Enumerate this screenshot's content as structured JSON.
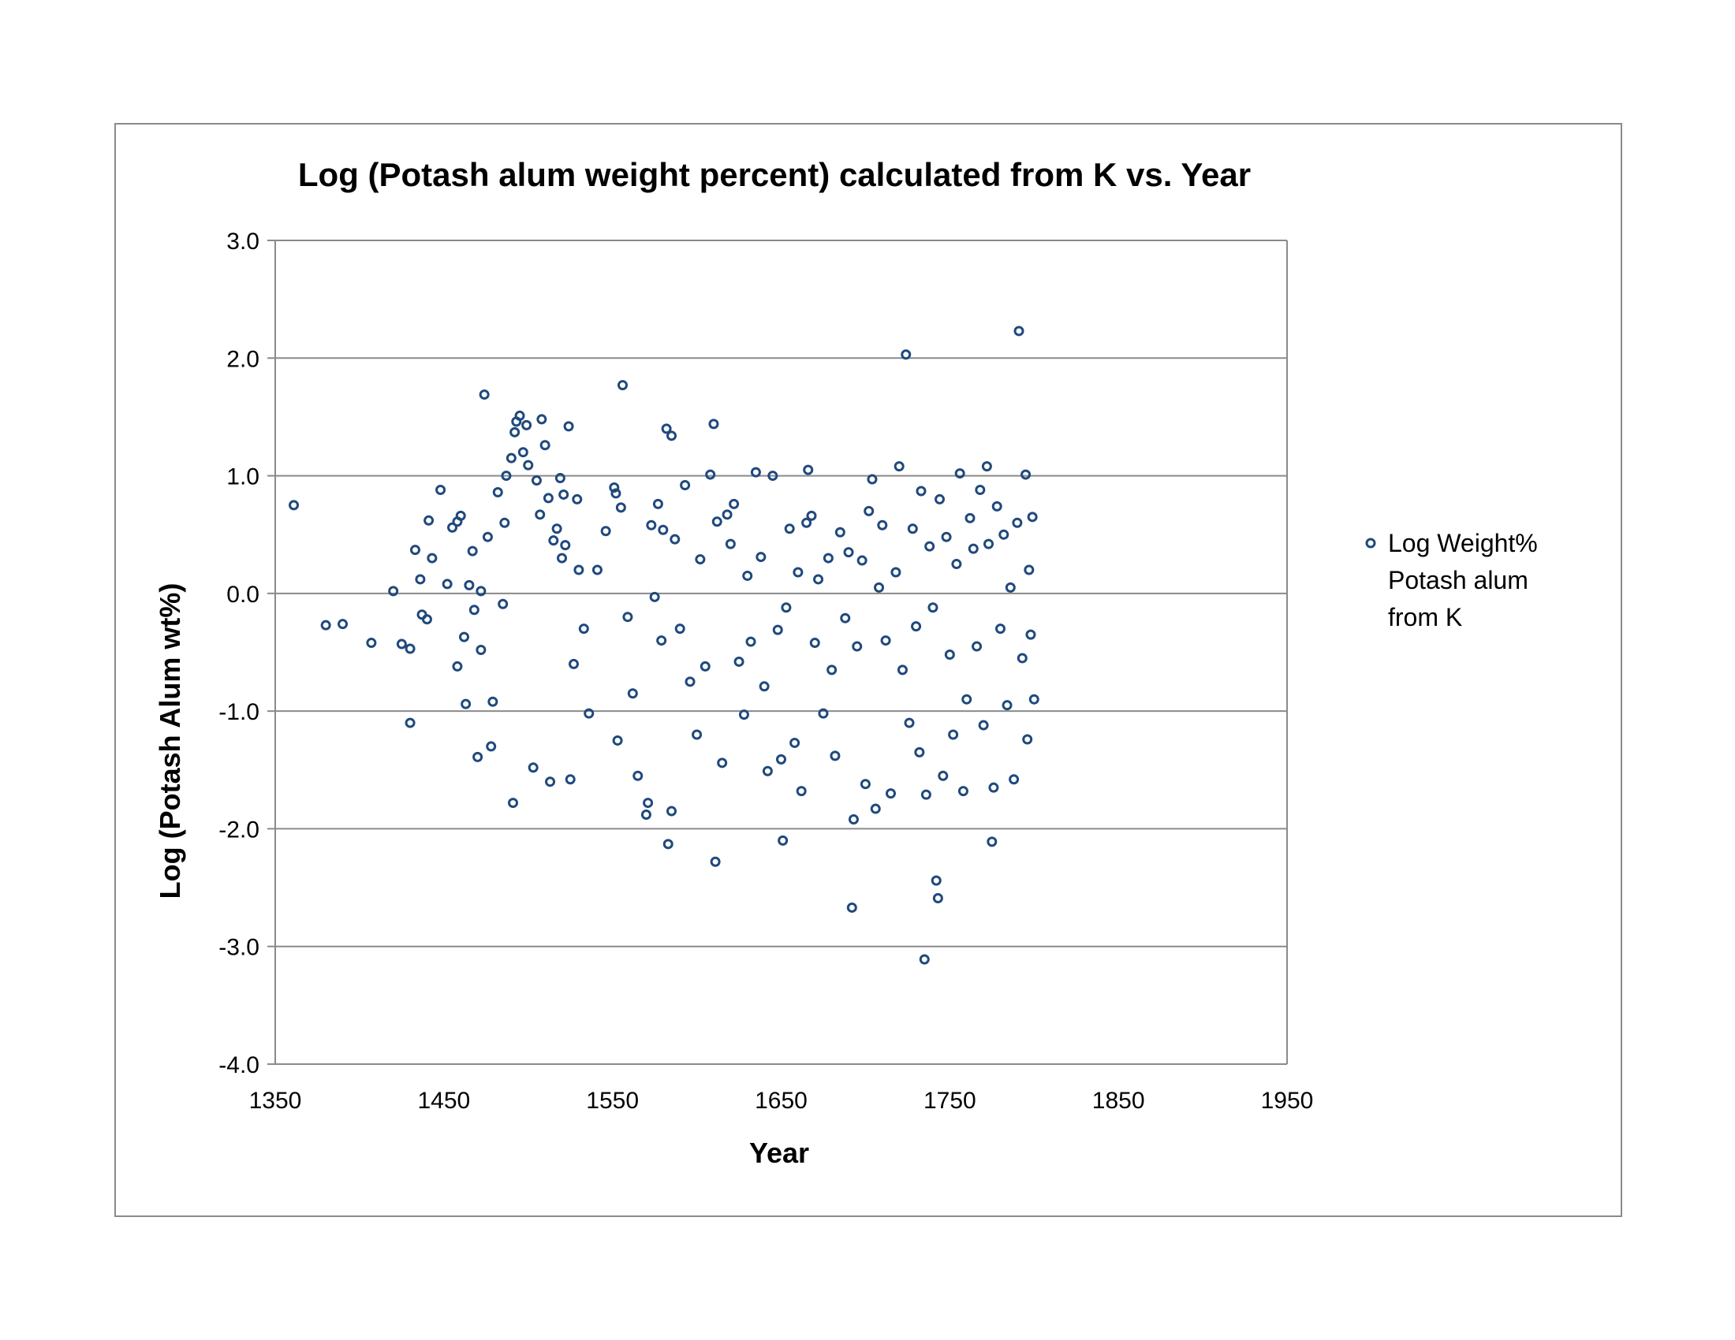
{
  "chart_data": {
    "type": "scatter",
    "title": "Log (Potash alum weight percent) calculated from K  vs. Year",
    "xlabel": "Year",
    "ylabel": "Log  (Potash Alum  wt%)",
    "xlim": [
      1350,
      1950
    ],
    "ylim": [
      -4.0,
      3.0
    ],
    "xticks": [
      1350,
      1450,
      1550,
      1650,
      1750,
      1850,
      1950
    ],
    "yticks": [
      3.0,
      2.0,
      1.0,
      0.0,
      -1.0,
      -2.0,
      -3.0,
      -4.0
    ],
    "ytick_labels": [
      "3.0",
      "2.0",
      "1.0",
      "0.0",
      "-1.0",
      "-2.0",
      "-3.0",
      "-4.0"
    ],
    "grid": "horizontal",
    "legend_position": "right",
    "marker_color": "#1F497D",
    "series": [
      {
        "name": "Log Weight% Potash alum from K",
        "points": [
          [
            1361,
            0.75
          ],
          [
            1380,
            -0.27
          ],
          [
            1390,
            -0.26
          ],
          [
            1407,
            -0.42
          ],
          [
            1420,
            0.02
          ],
          [
            1425,
            -0.43
          ],
          [
            1430,
            -0.47
          ],
          [
            1430,
            -1.1
          ],
          [
            1433,
            0.37
          ],
          [
            1436,
            0.12
          ],
          [
            1437,
            -0.18
          ],
          [
            1440,
            -0.22
          ],
          [
            1441,
            0.62
          ],
          [
            1443,
            0.3
          ],
          [
            1448,
            0.88
          ],
          [
            1452,
            0.08
          ],
          [
            1455,
            0.56
          ],
          [
            1458,
            0.61
          ],
          [
            1460,
            0.66
          ],
          [
            1458,
            -0.62
          ],
          [
            1462,
            -0.37
          ],
          [
            1463,
            -0.94
          ],
          [
            1465,
            0.07
          ],
          [
            1467,
            0.36
          ],
          [
            1468,
            -0.14
          ],
          [
            1470,
            -1.39
          ],
          [
            1472,
            -0.48
          ],
          [
            1472,
            0.02
          ],
          [
            1474,
            1.69
          ],
          [
            1476,
            0.48
          ],
          [
            1478,
            -1.3
          ],
          [
            1479,
            -0.92
          ],
          [
            1482,
            0.86
          ],
          [
            1485,
            -0.09
          ],
          [
            1486,
            0.6
          ],
          [
            1487,
            1.0
          ],
          [
            1490,
            1.15
          ],
          [
            1491,
            -1.78
          ],
          [
            1492,
            1.37
          ],
          [
            1493,
            1.46
          ],
          [
            1495,
            1.51
          ],
          [
            1497,
            1.2
          ],
          [
            1499,
            1.43
          ],
          [
            1500,
            1.09
          ],
          [
            1503,
            -1.48
          ],
          [
            1505,
            0.96
          ],
          [
            1507,
            0.67
          ],
          [
            1508,
            1.48
          ],
          [
            1510,
            1.26
          ],
          [
            1512,
            0.81
          ],
          [
            1513,
            -1.6
          ],
          [
            1515,
            0.45
          ],
          [
            1517,
            0.55
          ],
          [
            1519,
            0.98
          ],
          [
            1520,
            0.3
          ],
          [
            1521,
            0.84
          ],
          [
            1522,
            0.41
          ],
          [
            1524,
            1.42
          ],
          [
            1525,
            -1.58
          ],
          [
            1527,
            -0.6
          ],
          [
            1529,
            0.8
          ],
          [
            1530,
            0.2
          ],
          [
            1533,
            -0.3
          ],
          [
            1536,
            -1.02
          ],
          [
            1541,
            0.2
          ],
          [
            1546,
            0.53
          ],
          [
            1551,
            0.9
          ],
          [
            1552,
            0.85
          ],
          [
            1553,
            -1.25
          ],
          [
            1555,
            0.73
          ],
          [
            1556,
            1.77
          ],
          [
            1559,
            -0.2
          ],
          [
            1562,
            -0.85
          ],
          [
            1565,
            -1.55
          ],
          [
            1570,
            -1.88
          ],
          [
            1571,
            -1.78
          ],
          [
            1573,
            0.58
          ],
          [
            1575,
            -0.03
          ],
          [
            1577,
            0.76
          ],
          [
            1579,
            -0.4
          ],
          [
            1580,
            0.54
          ],
          [
            1582,
            1.4
          ],
          [
            1583,
            -2.13
          ],
          [
            1585,
            1.34
          ],
          [
            1585,
            -1.85
          ],
          [
            1587,
            0.46
          ],
          [
            1590,
            -0.3
          ],
          [
            1593,
            0.92
          ],
          [
            1596,
            -0.75
          ],
          [
            1600,
            -1.2
          ],
          [
            1602,
            0.29
          ],
          [
            1605,
            -0.62
          ],
          [
            1608,
            1.01
          ],
          [
            1610,
            1.44
          ],
          [
            1611,
            -2.28
          ],
          [
            1612,
            0.61
          ],
          [
            1615,
            -1.44
          ],
          [
            1618,
            0.67
          ],
          [
            1620,
            0.42
          ],
          [
            1622,
            0.76
          ],
          [
            1625,
            -0.58
          ],
          [
            1628,
            -1.03
          ],
          [
            1630,
            0.15
          ],
          [
            1632,
            -0.41
          ],
          [
            1635,
            1.03
          ],
          [
            1638,
            0.31
          ],
          [
            1640,
            -0.79
          ],
          [
            1642,
            -1.51
          ],
          [
            1645,
            1.0
          ],
          [
            1648,
            -0.31
          ],
          [
            1650,
            -1.41
          ],
          [
            1651,
            -2.1
          ],
          [
            1653,
            -0.12
          ],
          [
            1655,
            0.55
          ],
          [
            1658,
            -1.27
          ],
          [
            1660,
            0.18
          ],
          [
            1662,
            -1.68
          ],
          [
            1665,
            0.6
          ],
          [
            1666,
            1.05
          ],
          [
            1668,
            0.66
          ],
          [
            1670,
            -0.42
          ],
          [
            1672,
            0.12
          ],
          [
            1675,
            -1.02
          ],
          [
            1678,
            0.3
          ],
          [
            1680,
            -0.65
          ],
          [
            1682,
            -1.38
          ],
          [
            1685,
            0.52
          ],
          [
            1688,
            -0.21
          ],
          [
            1690,
            0.35
          ],
          [
            1692,
            -2.67
          ],
          [
            1693,
            -1.92
          ],
          [
            1695,
            -0.45
          ],
          [
            1698,
            0.28
          ],
          [
            1700,
            -1.62
          ],
          [
            1702,
            0.7
          ],
          [
            1704,
            0.97
          ],
          [
            1706,
            -1.83
          ],
          [
            1708,
            0.05
          ],
          [
            1710,
            0.58
          ],
          [
            1712,
            -0.4
          ],
          [
            1715,
            -1.7
          ],
          [
            1718,
            0.18
          ],
          [
            1720,
            1.08
          ],
          [
            1722,
            -0.65
          ],
          [
            1724,
            2.03
          ],
          [
            1726,
            -1.1
          ],
          [
            1728,
            0.55
          ],
          [
            1730,
            -0.28
          ],
          [
            1732,
            -1.35
          ],
          [
            1733,
            0.87
          ],
          [
            1735,
            -3.11
          ],
          [
            1736,
            -1.71
          ],
          [
            1738,
            0.4
          ],
          [
            1740,
            -0.12
          ],
          [
            1742,
            -2.44
          ],
          [
            1743,
            -2.59
          ],
          [
            1744,
            0.8
          ],
          [
            1746,
            -1.55
          ],
          [
            1748,
            0.48
          ],
          [
            1750,
            -0.52
          ],
          [
            1752,
            -1.2
          ],
          [
            1754,
            0.25
          ],
          [
            1756,
            1.02
          ],
          [
            1758,
            -1.68
          ],
          [
            1760,
            -0.9
          ],
          [
            1762,
            0.64
          ],
          [
            1764,
            0.38
          ],
          [
            1766,
            -0.45
          ],
          [
            1768,
            0.88
          ],
          [
            1770,
            -1.12
          ],
          [
            1772,
            1.08
          ],
          [
            1773,
            0.42
          ],
          [
            1775,
            -2.11
          ],
          [
            1776,
            -1.65
          ],
          [
            1778,
            0.74
          ],
          [
            1780,
            -0.3
          ],
          [
            1782,
            0.5
          ],
          [
            1784,
            -0.95
          ],
          [
            1786,
            0.05
          ],
          [
            1788,
            -1.58
          ],
          [
            1790,
            0.6
          ],
          [
            1791,
            2.23
          ],
          [
            1793,
            -0.55
          ],
          [
            1795,
            1.01
          ],
          [
            1796,
            -1.24
          ],
          [
            1797,
            0.2
          ],
          [
            1798,
            -0.35
          ],
          [
            1799,
            0.65
          ],
          [
            1800,
            -0.9
          ]
        ]
      }
    ]
  }
}
